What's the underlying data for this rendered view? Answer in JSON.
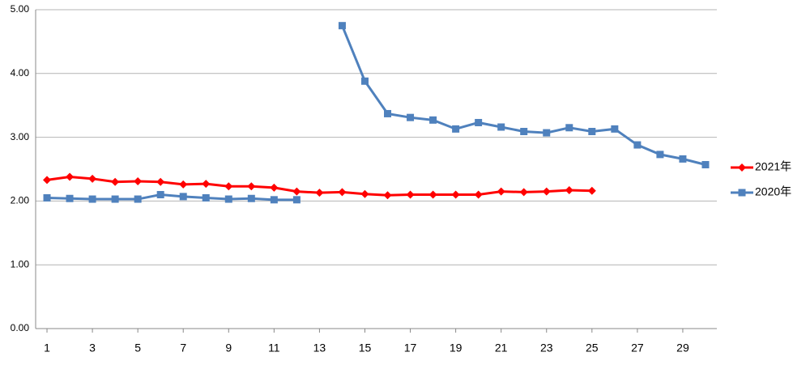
{
  "chart_data": {
    "type": "line",
    "x": [
      1,
      2,
      3,
      4,
      5,
      6,
      7,
      8,
      9,
      10,
      11,
      12,
      13,
      14,
      15,
      16,
      17,
      18,
      19,
      20,
      21,
      22,
      23,
      24,
      25,
      26,
      27,
      28,
      29,
      30
    ],
    "xlim": [
      0.5,
      30.5
    ],
    "xticks": [
      1,
      3,
      5,
      7,
      9,
      11,
      13,
      15,
      17,
      19,
      21,
      23,
      25,
      27,
      29
    ],
    "ylim": [
      0,
      5
    ],
    "yticks": [
      {
        "value": 0,
        "label": "0.00"
      },
      {
        "value": 1,
        "label": "1.00"
      },
      {
        "value": 2,
        "label": "2.00"
      },
      {
        "value": 3,
        "label": "3.00"
      },
      {
        "value": 4,
        "label": "4.00"
      },
      {
        "value": 5,
        "label": "5.00"
      }
    ],
    "grid": true,
    "legend": "right",
    "series": [
      {
        "name": "2021年",
        "color": "#ff0000",
        "marker": "diamond",
        "values": [
          2.33,
          2.38,
          2.35,
          2.3,
          2.31,
          2.3,
          2.26,
          2.27,
          2.23,
          2.23,
          2.21,
          2.15,
          2.13,
          2.14,
          2.11,
          2.09,
          2.1,
          2.1,
          2.1,
          2.1,
          2.15,
          2.14,
          2.15,
          2.17,
          2.16,
          null,
          null,
          null,
          null,
          null
        ]
      },
      {
        "name": "2020年",
        "color": "#4f81bd",
        "marker": "square",
        "values": [
          2.05,
          2.04,
          2.03,
          2.03,
          2.03,
          2.1,
          2.07,
          2.05,
          2.03,
          2.04,
          2.02,
          2.02,
          null,
          4.75,
          3.88,
          3.37,
          3.31,
          3.27,
          3.13,
          3.23,
          3.16,
          3.09,
          3.07,
          3.15,
          3.09,
          3.13,
          2.88,
          2.73,
          2.66,
          2.57
        ]
      }
    ]
  }
}
